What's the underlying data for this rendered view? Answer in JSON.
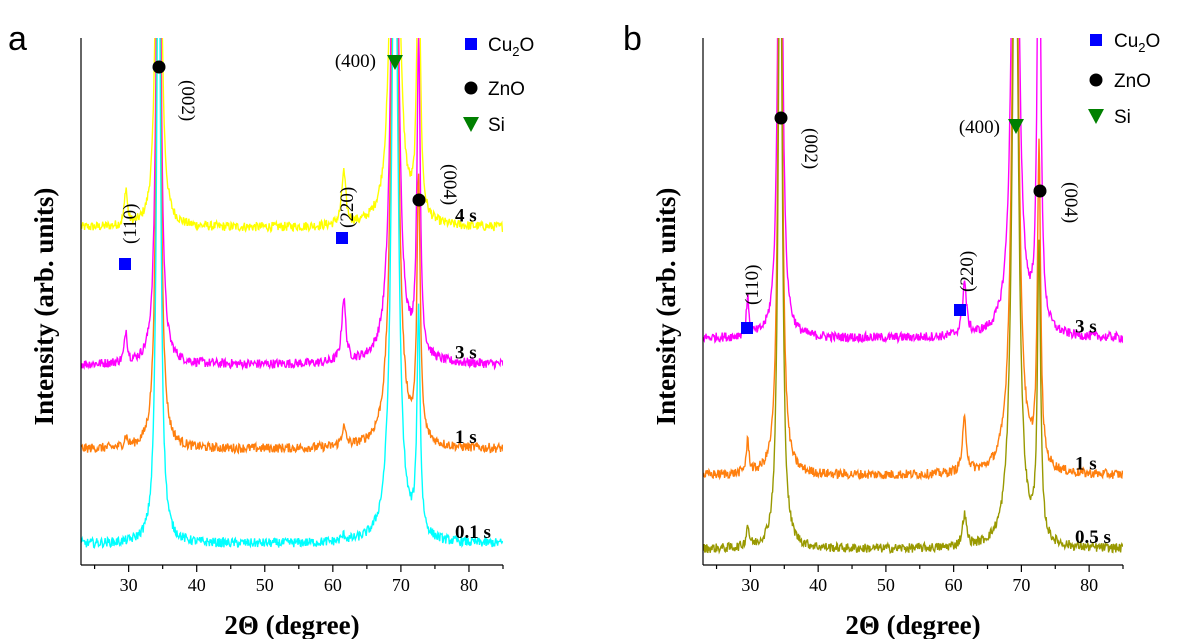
{
  "chart_data": [
    {
      "panel": "a",
      "type": "line",
      "xlabel": "2Θ (degree)",
      "ylabel": "Intensity (arb. units)",
      "xlim": [
        23,
        85
      ],
      "xticks": [
        30,
        40,
        50,
        60,
        70,
        80
      ],
      "series": [
        {
          "name": "4 s",
          "color": "#ffff00",
          "offset": 0.64,
          "cu2o_110": 0.07,
          "cu2o_220": 0.1,
          "si": 1.3,
          "zno_002": 1.3,
          "zno_004": 0.6
        },
        {
          "name": "3 s",
          "color": "#ff00ff",
          "offset": 0.38,
          "cu2o_110": 0.06,
          "cu2o_220": 0.12,
          "si": 1.3,
          "zno_002": 1.3,
          "zno_004": 0.6
        },
        {
          "name": "1 s",
          "color": "#ff7f0e",
          "offset": 0.22,
          "cu2o_110": 0.02,
          "cu2o_220": 0.035,
          "si": 1.3,
          "zno_002": 1.3,
          "zno_004": 0.5
        },
        {
          "name": "0.1 s",
          "color": "#00ffff",
          "offset": 0.04,
          "cu2o_110": 0.0,
          "cu2o_220": 0.01,
          "si": 1.3,
          "zno_002": 1.3,
          "zno_004": 0.42
        }
      ],
      "peak_labels": [
        {
          "text": "(110)",
          "x": 29.6,
          "phase": "Cu₂O"
        },
        {
          "text": "(002)",
          "x": 34.4,
          "phase": "ZnO"
        },
        {
          "text": "(220)",
          "x": 61.5,
          "phase": "Cu₂O"
        },
        {
          "text": "(400)",
          "x": 69.1,
          "phase": "Si"
        },
        {
          "text": "(004)",
          "x": 72.6,
          "phase": "ZnO"
        }
      ],
      "legend": [
        {
          "label": "Cu",
          "sub": "2",
          "tail": "O",
          "marker": "square",
          "color": "#0000ff"
        },
        {
          "label": "ZnO",
          "sub": "",
          "tail": "",
          "marker": "circle",
          "color": "#000000"
        },
        {
          "label": "Si",
          "sub": "",
          "tail": "",
          "marker": "triangle-down",
          "color": "#008000"
        }
      ]
    },
    {
      "panel": "b",
      "type": "line",
      "xlabel": "2Θ (degree)",
      "ylabel": "Intensity (arb. units)",
      "xlim": [
        23,
        85
      ],
      "xticks": [
        30,
        40,
        50,
        60,
        70,
        80
      ],
      "series": [
        {
          "name": "3 s",
          "color": "#ff00ff",
          "offset": 0.43,
          "cu2o_110": 0.07,
          "cu2o_220": 0.1,
          "si": 1.3,
          "zno_002": 1.3,
          "zno_004": 1.0
        },
        {
          "name": "1 s",
          "color": "#ff7f0e",
          "offset": 0.17,
          "cu2o_110": 0.06,
          "cu2o_220": 0.1,
          "si": 1.3,
          "zno_002": 1.3,
          "zno_004": 0.6
        },
        {
          "name": "0.5 s",
          "color": "#999900",
          "offset": 0.03,
          "cu2o_110": 0.04,
          "cu2o_220": 0.06,
          "si": 1.3,
          "zno_002": 1.3,
          "zno_004": 0.55
        }
      ],
      "peak_labels": [
        {
          "text": "(110)",
          "x": 29.6,
          "phase": "Cu₂O"
        },
        {
          "text": "(002)",
          "x": 34.4,
          "phase": "ZnO"
        },
        {
          "text": "(220)",
          "x": 61.5,
          "phase": "Cu₂O"
        },
        {
          "text": "(400)",
          "x": 69.1,
          "phase": "Si"
        },
        {
          "text": "(004)",
          "x": 72.6,
          "phase": "ZnO"
        }
      ],
      "legend": [
        {
          "label": "Cu",
          "sub": "2",
          "tail": "O",
          "marker": "square",
          "color": "#0000ff"
        },
        {
          "label": "ZnO",
          "sub": "",
          "tail": "",
          "marker": "circle",
          "color": "#000000"
        },
        {
          "label": "Si",
          "sub": "",
          "tail": "",
          "marker": "triangle-down",
          "color": "#008000"
        }
      ]
    }
  ]
}
